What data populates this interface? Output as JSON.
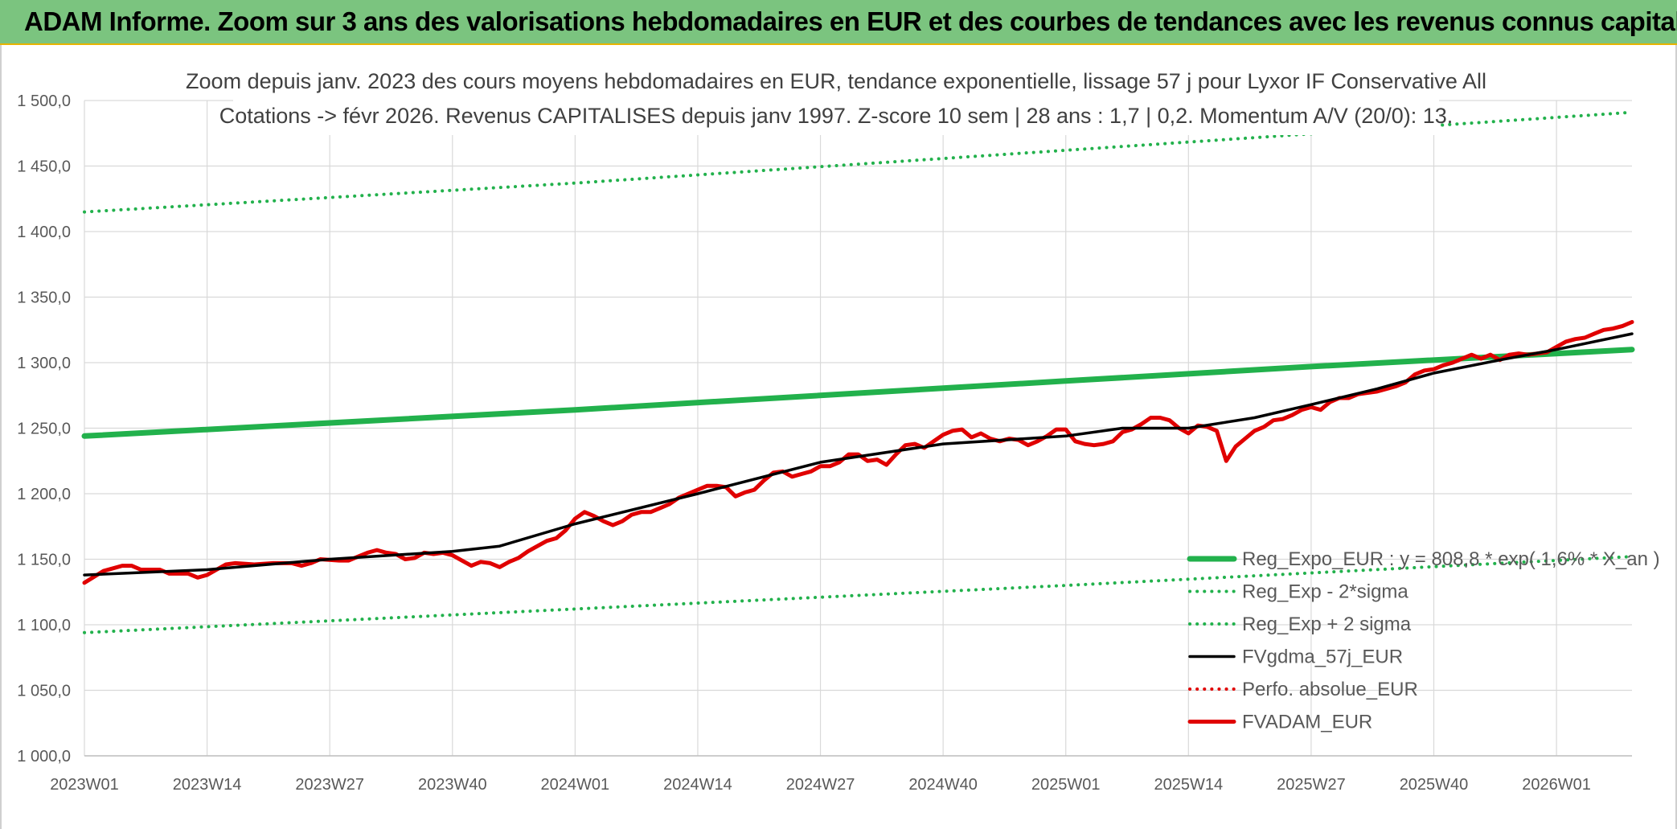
{
  "header": {
    "title": "ADAM Informe. Zoom sur 3 ans des valorisations hebdomadaires en EUR et des courbes de tendances avec les revenus connus capitalisés"
  },
  "chart_data": {
    "type": "line",
    "title_line1": "Zoom depuis janv. 2023 des cours moyens hebdomadaires en EUR, tendance exponentielle, lissage 57 j pour Lyxor IF Conservative All",
    "title_line2": "Cotations -> févr 2026. Revenus CAPITALISES depuis janv 1997. Z-score 10 sem | 28 ans : 1,7 | 0,2. Momentum A/V (20/0): 13.",
    "ylim": [
      1000,
      1500
    ],
    "yticks": [
      "1 000,0",
      "1 050,0",
      "1 100,0",
      "1 150,0",
      "1 200,0",
      "1 250,0",
      "1 300,0",
      "1 350,0",
      "1 400,0",
      "1 450,0",
      "1 500,0"
    ],
    "xticks": [
      "2023W01",
      "2023W14",
      "2023W27",
      "2023W40",
      "2024W01",
      "2024W14",
      "2024W27",
      "2024W40",
      "2025W01",
      "2025W14",
      "2025W27",
      "2025W40",
      "2026W01"
    ],
    "xtick_weeks": [
      0,
      13,
      26,
      39,
      52,
      65,
      78,
      91,
      104,
      117,
      130,
      143,
      156
    ],
    "x_range_weeks": [
      0,
      164
    ],
    "grid": true,
    "legend_position": "bottom-right",
    "series": [
      {
        "name": "Reg_Expo_EUR : y = 808,8 * exp( 1,6% * X_an )",
        "color": "#22b14c",
        "style": "solid-thick",
        "points": [
          [
            0,
            1244
          ],
          [
            52,
            1264
          ],
          [
            104,
            1286
          ],
          [
            130,
            1297
          ],
          [
            164,
            1310
          ]
        ]
      },
      {
        "name": "Reg_Exp - 2*sigma",
        "color": "#22b14c",
        "style": "dotted",
        "points": [
          [
            0,
            1094
          ],
          [
            52,
            1112
          ],
          [
            104,
            1130
          ],
          [
            164,
            1152
          ]
        ]
      },
      {
        "name": "Reg_Exp + 2 sigma",
        "color": "#22b14c",
        "style": "dotted",
        "points": [
          [
            0,
            1415
          ],
          [
            52,
            1437
          ],
          [
            104,
            1462
          ],
          [
            164,
            1491
          ]
        ]
      },
      {
        "name": "FVgdma_57j_EUR",
        "color": "#000000",
        "style": "solid",
        "points": [
          [
            0,
            1138
          ],
          [
            13,
            1142
          ],
          [
            26,
            1150
          ],
          [
            39,
            1156
          ],
          [
            44,
            1160
          ],
          [
            52,
            1177
          ],
          [
            65,
            1200
          ],
          [
            78,
            1224
          ],
          [
            91,
            1238
          ],
          [
            104,
            1244
          ],
          [
            110,
            1250
          ],
          [
            117,
            1250
          ],
          [
            124,
            1258
          ],
          [
            130,
            1268
          ],
          [
            137,
            1280
          ],
          [
            143,
            1292
          ],
          [
            150,
            1302
          ],
          [
            156,
            1310
          ],
          [
            164,
            1322
          ]
        ]
      },
      {
        "name": "Perfo. absolue_EUR",
        "color": "#e00000",
        "style": "dotted",
        "points": []
      },
      {
        "name": "FVADAM_EUR",
        "color": "#e00000",
        "style": "solid-thick",
        "points": [
          [
            0,
            1132
          ],
          [
            2,
            1141
          ],
          [
            4,
            1145
          ],
          [
            5,
            1145
          ],
          [
            6,
            1142
          ],
          [
            8,
            1142
          ],
          [
            9,
            1139
          ],
          [
            11,
            1139
          ],
          [
            12,
            1136
          ],
          [
            13,
            1138
          ],
          [
            14,
            1142
          ],
          [
            15,
            1146
          ],
          [
            16,
            1147
          ],
          [
            18,
            1146
          ],
          [
            20,
            1147
          ],
          [
            22,
            1147
          ],
          [
            23,
            1145
          ],
          [
            24,
            1147
          ],
          [
            25,
            1150
          ],
          [
            27,
            1149
          ],
          [
            28,
            1149
          ],
          [
            29,
            1152
          ],
          [
            30,
            1155
          ],
          [
            31,
            1157
          ],
          [
            32,
            1155
          ],
          [
            33,
            1154
          ],
          [
            34,
            1150
          ],
          [
            35,
            1151
          ],
          [
            36,
            1155
          ],
          [
            37,
            1154
          ],
          [
            38,
            1155
          ],
          [
            39,
            1153
          ],
          [
            40,
            1149
          ],
          [
            41,
            1145
          ],
          [
            42,
            1148
          ],
          [
            43,
            1147
          ],
          [
            44,
            1144
          ],
          [
            45,
            1148
          ],
          [
            46,
            1151
          ],
          [
            47,
            1156
          ],
          [
            48,
            1160
          ],
          [
            49,
            1164
          ],
          [
            50,
            1166
          ],
          [
            51,
            1172
          ],
          [
            52,
            1181
          ],
          [
            53,
            1186
          ],
          [
            54,
            1183
          ],
          [
            55,
            1179
          ],
          [
            56,
            1176
          ],
          [
            57,
            1179
          ],
          [
            58,
            1184
          ],
          [
            59,
            1186
          ],
          [
            60,
            1186
          ],
          [
            61,
            1189
          ],
          [
            62,
            1192
          ],
          [
            63,
            1197
          ],
          [
            64,
            1200
          ],
          [
            65,
            1203
          ],
          [
            66,
            1206
          ],
          [
            67,
            1206
          ],
          [
            68,
            1205
          ],
          [
            69,
            1198
          ],
          [
            70,
            1201
          ],
          [
            71,
            1203
          ],
          [
            72,
            1210
          ],
          [
            73,
            1216
          ],
          [
            74,
            1217
          ],
          [
            75,
            1213
          ],
          [
            76,
            1215
          ],
          [
            77,
            1217
          ],
          [
            78,
            1221
          ],
          [
            79,
            1221
          ],
          [
            80,
            1224
          ],
          [
            81,
            1230
          ],
          [
            82,
            1230
          ],
          [
            83,
            1225
          ],
          [
            84,
            1226
          ],
          [
            85,
            1222
          ],
          [
            86,
            1230
          ],
          [
            87,
            1237
          ],
          [
            88,
            1238
          ],
          [
            89,
            1235
          ],
          [
            90,
            1240
          ],
          [
            91,
            1245
          ],
          [
            92,
            1248
          ],
          [
            93,
            1249
          ],
          [
            94,
            1243
          ],
          [
            95,
            1246
          ],
          [
            96,
            1242
          ],
          [
            97,
            1240
          ],
          [
            98,
            1242
          ],
          [
            99,
            1241
          ],
          [
            100,
            1237
          ],
          [
            101,
            1240
          ],
          [
            102,
            1244
          ],
          [
            103,
            1249
          ],
          [
            104,
            1249
          ],
          [
            105,
            1240
          ],
          [
            106,
            1238
          ],
          [
            107,
            1237
          ],
          [
            108,
            1238
          ],
          [
            109,
            1240
          ],
          [
            110,
            1247
          ],
          [
            111,
            1249
          ],
          [
            112,
            1253
          ],
          [
            113,
            1258
          ],
          [
            114,
            1258
          ],
          [
            115,
            1256
          ],
          [
            116,
            1250
          ],
          [
            117,
            1246
          ],
          [
            118,
            1252
          ],
          [
            119,
            1251
          ],
          [
            120,
            1248
          ],
          [
            121,
            1225
          ],
          [
            122,
            1236
          ],
          [
            123,
            1242
          ],
          [
            124,
            1248
          ],
          [
            125,
            1251
          ],
          [
            126,
            1256
          ],
          [
            127,
            1257
          ],
          [
            128,
            1260
          ],
          [
            129,
            1264
          ],
          [
            130,
            1266
          ],
          [
            131,
            1264
          ],
          [
            132,
            1270
          ],
          [
            133,
            1273
          ],
          [
            134,
            1273
          ],
          [
            135,
            1276
          ],
          [
            136,
            1277
          ],
          [
            137,
            1278
          ],
          [
            138,
            1280
          ],
          [
            139,
            1282
          ],
          [
            140,
            1285
          ],
          [
            141,
            1291
          ],
          [
            142,
            1294
          ],
          [
            143,
            1295
          ],
          [
            144,
            1298
          ],
          [
            145,
            1300
          ],
          [
            146,
            1303
          ],
          [
            147,
            1306
          ],
          [
            148,
            1303
          ],
          [
            149,
            1306
          ],
          [
            150,
            1302
          ],
          [
            151,
            1306
          ],
          [
            152,
            1307
          ],
          [
            153,
            1306
          ],
          [
            154,
            1307
          ],
          [
            155,
            1308
          ],
          [
            156,
            1312
          ],
          [
            157,
            1316
          ],
          [
            158,
            1318
          ],
          [
            159,
            1319
          ],
          [
            160,
            1322
          ],
          [
            161,
            1325
          ],
          [
            162,
            1326
          ],
          [
            163,
            1328
          ],
          [
            164,
            1331
          ]
        ]
      }
    ]
  }
}
